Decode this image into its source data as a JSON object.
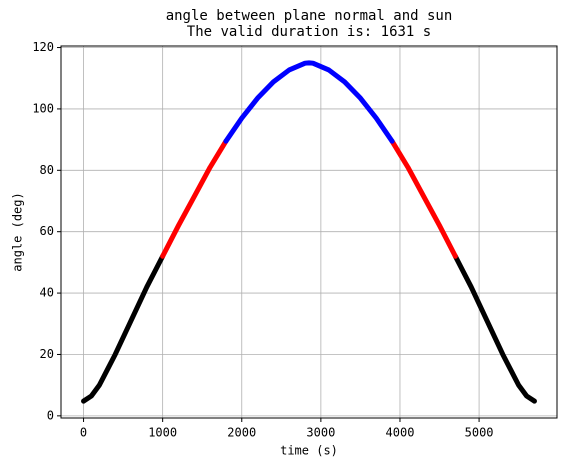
{
  "chart_data": {
    "type": "line",
    "title": [
      "angle between plane normal and sun",
      "The valid duration is: 1631 s"
    ],
    "xlabel": "time (s)",
    "ylabel": "angle (deg)",
    "xlim": [
      -285,
      5985
    ],
    "ylim": [
      -0.7,
      120.5
    ],
    "xticks": [
      0,
      1000,
      2000,
      3000,
      4000,
      5000
    ],
    "yticks": [
      0,
      20,
      40,
      60,
      80,
      100,
      120
    ],
    "grid": true,
    "series": [
      {
        "color": "#000000",
        "x": [
          0,
          100,
          200,
          300,
          400,
          500,
          600,
          700,
          800,
          900,
          1000,
          2850,
          4700,
          4800,
          4900,
          5000,
          5100,
          5200,
          5300,
          5400,
          5500,
          5600,
          5700
        ],
        "values": [
          4.8,
          6.5,
          10,
          15,
          20,
          25.5,
          31,
          36.5,
          42,
          47,
          52,
          null,
          52,
          47,
          42,
          36.5,
          31,
          25.5,
          20,
          15,
          10,
          6.5,
          4.8
        ]
      },
      {
        "color": "#ff0000",
        "x": [
          1000,
          1200,
          1400,
          1600,
          1800,
          2850,
          3900,
          4100,
          4300,
          4500,
          4700
        ],
        "values": [
          52,
          62,
          71.5,
          81,
          89.5,
          null,
          89.5,
          81,
          71.5,
          62,
          52
        ]
      },
      {
        "color": "#0000ff",
        "x": [
          1800,
          2000,
          2200,
          2400,
          2600,
          2800,
          2850,
          2900,
          3100,
          3300,
          3500,
          3700,
          3900
        ],
        "values": [
          89.5,
          97,
          103.5,
          108.8,
          112.7,
          114.9,
          115,
          114.9,
          112.7,
          108.8,
          103.5,
          97,
          89.5
        ]
      }
    ]
  }
}
